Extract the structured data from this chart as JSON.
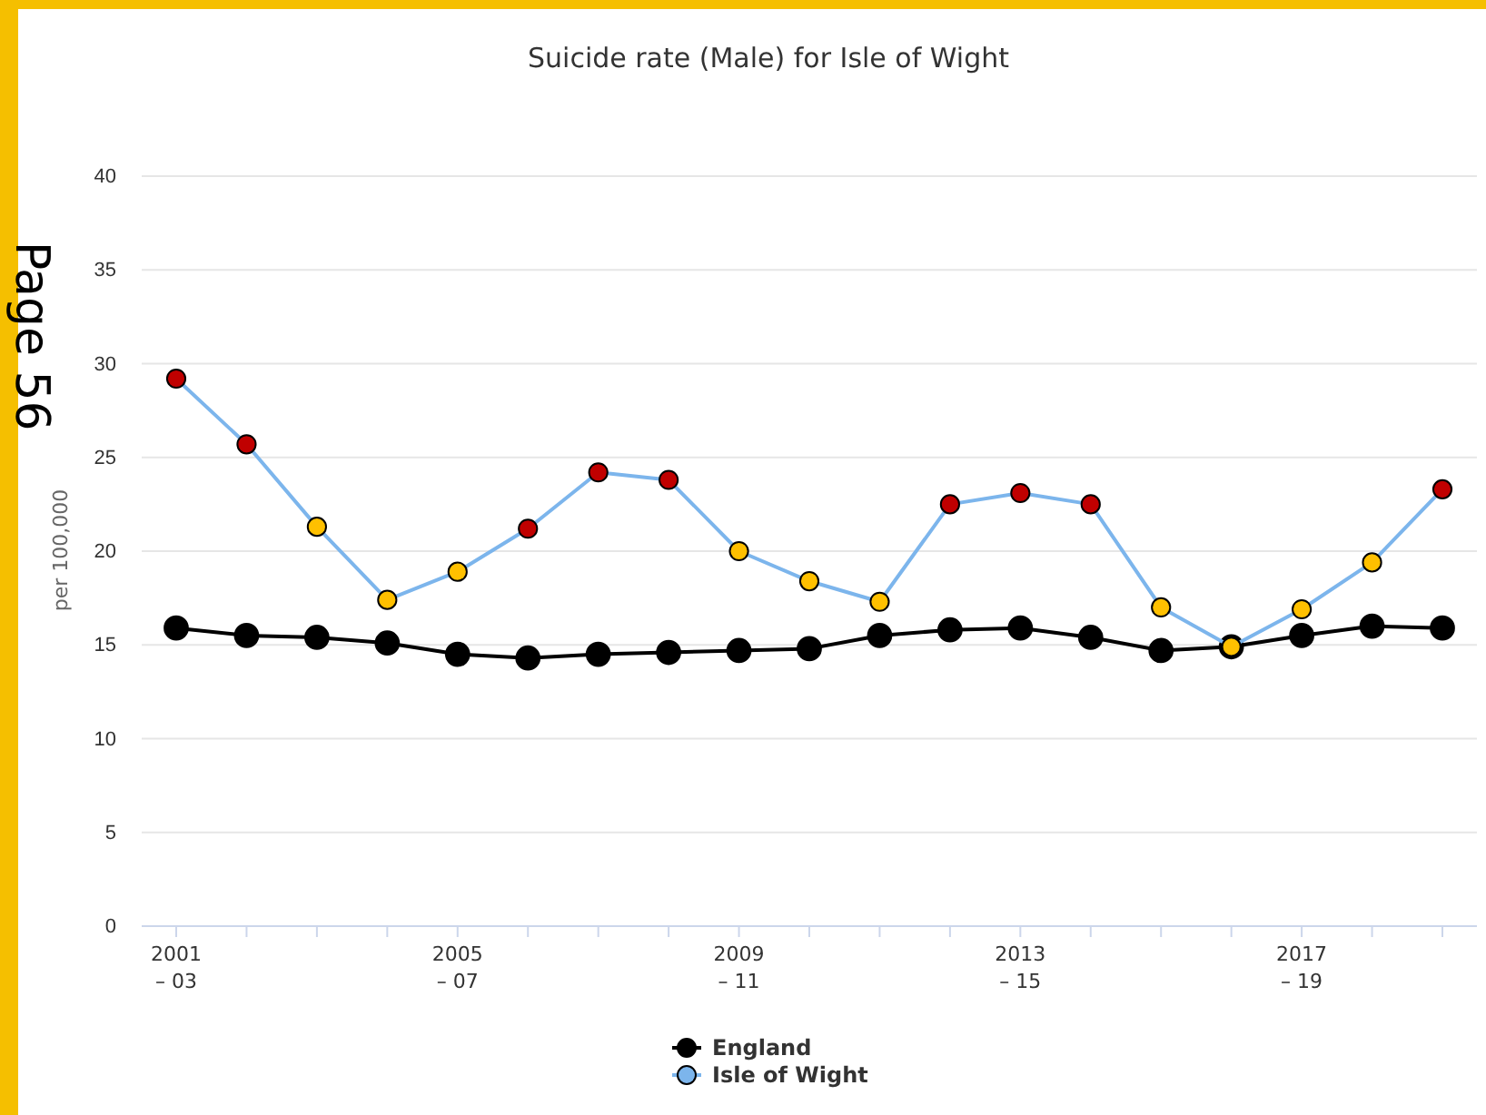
{
  "chart_data": {
    "type": "line",
    "title": "Suicide rate (Male) for Isle of Wight",
    "ylabel": "per 100,000",
    "categories": [
      "2001 – 03",
      null,
      null,
      null,
      "2005 – 07",
      null,
      null,
      null,
      "2009 – 11",
      null,
      null,
      null,
      "2013 – 15",
      null,
      null,
      null,
      "2017 – 19",
      null,
      null
    ],
    "series": [
      {
        "name": "England",
        "color": "#000000",
        "values": [
          15.9,
          15.5,
          15.4,
          15.1,
          14.5,
          14.3,
          14.5,
          14.6,
          14.7,
          14.8,
          15.5,
          15.8,
          15.9,
          15.4,
          14.7,
          14.9,
          15.5,
          16.0,
          15.9
        ]
      },
      {
        "name": "Isle of Wight",
        "color": "#7cb5ec",
        "colors": [
          "#c00000",
          "#c00000",
          "#ffc000",
          "#ffc000",
          "#ffc000",
          "#c00000",
          "#c00000",
          "#c00000",
          "#ffc000",
          "#ffc000",
          "#ffc000",
          "#c00000",
          "#c00000",
          "#c00000",
          "#ffc000",
          "#ffc000",
          "#ffc000",
          "#ffc000",
          "#c00000"
        ],
        "values": [
          29.2,
          25.7,
          21.3,
          17.4,
          18.9,
          21.2,
          24.2,
          23.8,
          20.0,
          18.4,
          17.3,
          22.5,
          23.1,
          22.5,
          17.0,
          14.9,
          16.9,
          19.4,
          23.3
        ]
      }
    ],
    "ylim": [
      0,
      40
    ],
    "yticks": [
      0,
      5,
      10,
      15,
      20,
      25,
      30,
      35,
      40
    ],
    "grid": "y",
    "legend": "bottom",
    "marker": "circle",
    "line_style": "solid",
    "annotations": [
      "Page 56"
    ]
  }
}
